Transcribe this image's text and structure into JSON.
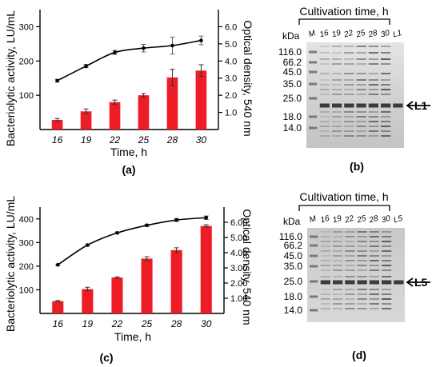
{
  "chart_data": [
    {
      "type": "bar",
      "panel": "(a)",
      "categories": [
        "16",
        "19",
        "22",
        "25",
        "28",
        "30"
      ],
      "xlabel": "Time, h",
      "ylabel": "Bacteriolytic activity, LU/mL",
      "ylabel_right": "Optical density, 540 nm",
      "ylim": [
        0,
        350
      ],
      "ylim_right": [
        0,
        7
      ],
      "yticks": [
        100,
        200,
        300
      ],
      "yticks_right": [
        "1.0",
        "2.0",
        "3.0",
        "4.0",
        "5.0",
        "6.0"
      ],
      "series": [
        {
          "kind": "bar",
          "axis": "left",
          "color": "#ee1c25",
          "values": [
            28,
            53,
            80,
            100,
            152,
            172
          ],
          "errors": [
            4,
            7,
            6,
            5,
            24,
            17
          ]
        },
        {
          "kind": "line",
          "axis": "right",
          "color": "#000000",
          "values": [
            2.85,
            3.7,
            4.5,
            4.75,
            4.9,
            5.2
          ],
          "errors": [
            0.08,
            0.1,
            0.12,
            0.22,
            0.5,
            0.25
          ]
        }
      ]
    },
    {
      "type": "bar",
      "panel": "(c)",
      "categories": [
        "16",
        "19",
        "22",
        "25",
        "28",
        "30"
      ],
      "xlabel": "Time, h",
      "ylabel": "Bacteriolytic activity, LU/mL",
      "ylabel_right": "Optical density, 540 nm",
      "ylim": [
        0,
        450
      ],
      "ylim_right": [
        0,
        7
      ],
      "yticks": [
        100,
        200,
        300,
        400
      ],
      "yticks_right": [
        "1.00",
        "2.00",
        "3.00",
        "4.00",
        "5.00",
        "6.00"
      ],
      "series": [
        {
          "kind": "bar",
          "axis": "left",
          "color": "#ee1c25",
          "values": [
            52,
            103,
            152,
            232,
            268,
            370
          ],
          "errors": [
            3,
            8,
            3,
            8,
            10,
            5
          ]
        },
        {
          "kind": "line",
          "axis": "right",
          "color": "#000000",
          "values": [
            3.2,
            4.5,
            5.3,
            5.8,
            6.15,
            6.3
          ],
          "errors": [
            0.05,
            0.06,
            0.06,
            0.08,
            0.1,
            0.12
          ]
        }
      ]
    }
  ],
  "gels": [
    {
      "panel": "(b)",
      "title": "Cultivation time, h",
      "kda": "kDa",
      "lanes": [
        "M",
        "16",
        "19",
        "22",
        "25",
        "28",
        "30",
        "L1"
      ],
      "markers": [
        "116.0",
        "66.2",
        "45.0",
        "35.0",
        "25.0",
        "18.0",
        "14.0"
      ],
      "band_label": "L1"
    },
    {
      "panel": "(d)",
      "title": "Cultivation time, h",
      "kda": "kDa",
      "lanes": [
        "M",
        "16",
        "19",
        "22",
        "25",
        "28",
        "30",
        "L5"
      ],
      "markers": [
        "116.0",
        "66.2",
        "45.0",
        "35.0",
        "25.0",
        "18.0",
        "14.0"
      ],
      "band_label": "L5"
    }
  ]
}
